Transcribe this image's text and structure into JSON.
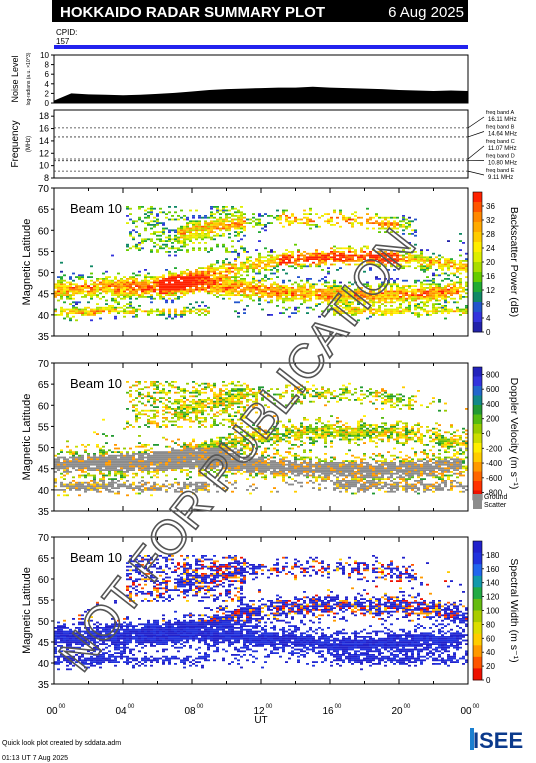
{
  "header": {
    "title": "HOKKAIDO RADAR SUMMARY PLOT",
    "date": "6 Aug 2025",
    "cpid_label": "CPID:",
    "cpid_value": "157"
  },
  "watermark": "NOT FOR PUBLICATION",
  "footer": {
    "line1": "Quick look plot created by sddata.adm",
    "line2": "01:13 UT  7 Aug 2025",
    "logo_text": "ISEE"
  },
  "colors": {
    "cpid_bar": "#2222ee",
    "ground_scatter": "#8c8c8c",
    "watermark": "#555555"
  },
  "chart_data": [
    {
      "type": "area",
      "name": "noise",
      "ylabel": "Noise Level",
      "ylabel_sub": "log-radians (a.u. ×10^3)",
      "ylim": [
        0,
        10
      ],
      "yticks": [
        "0",
        "2",
        "4",
        "6",
        "8",
        "10"
      ],
      "x": [
        0,
        1,
        2,
        3,
        4,
        5,
        6,
        7,
        8,
        9,
        10,
        11,
        12,
        13,
        14,
        15,
        16,
        17,
        18,
        19,
        20,
        21,
        22,
        23,
        24
      ],
      "values": [
        0.5,
        2.0,
        1.8,
        1.7,
        1.6,
        1.7,
        1.9,
        2.1,
        2.4,
        2.7,
        2.9,
        3.0,
        3.1,
        3.2,
        3.2,
        3.4,
        3.2,
        3.1,
        3.0,
        2.9,
        2.7,
        2.6,
        2.5,
        2.6,
        2.5
      ]
    },
    {
      "type": "line",
      "name": "frequency",
      "ylabel": "Frequency",
      "ylabel_sub": "(MHz)",
      "ylim": [
        8,
        19
      ],
      "yticks": [
        "8",
        "10",
        "12",
        "14",
        "16",
        "18"
      ],
      "bands": [
        {
          "label": "freq band A",
          "value_label": "16.11 MHz",
          "mhz": 16.11
        },
        {
          "label": "freq band B",
          "value_label": "14.64 MHz",
          "mhz": 14.64
        },
        {
          "label": "freq band C",
          "value_label": "11.07 MHz",
          "mhz": 11.07
        },
        {
          "label": "freq band D",
          "value_label": "10.80 MHz",
          "mhz": 10.8
        },
        {
          "label": "freq band E",
          "value_label": "9.11 MHz",
          "mhz": 9.11
        }
      ]
    },
    {
      "type": "heatmap",
      "name": "power",
      "beam_label": "Beam 10",
      "ylabel": "Magnetic Latitude",
      "ylim": [
        35,
        70
      ],
      "yticks": [
        "35",
        "40",
        "45",
        "50",
        "55",
        "60",
        "65",
        "70"
      ],
      "colorbar_title": "Backscatter Power (dB)",
      "colorbar_range": [
        0,
        40
      ],
      "colorbar_ticks": [
        "0",
        "4",
        "8",
        "12",
        "16",
        "20",
        "24",
        "28",
        "32",
        "36"
      ],
      "colors": [
        "#ff2200",
        "#ff5500",
        "#ff8800",
        "#ffaa00",
        "#ffcc00",
        "#ffee00",
        "#ddee00",
        "#aadd00",
        "#66cc00",
        "#22aa33",
        "#118866",
        "#2255cc",
        "#3333dd",
        "#2222aa"
      ]
    },
    {
      "type": "heatmap",
      "name": "velocity",
      "beam_label": "Beam 10",
      "ylabel": "Magnetic Latitude",
      "ylim": [
        35,
        70
      ],
      "yticks": [
        "35",
        "40",
        "45",
        "50",
        "55",
        "60",
        "65",
        "70"
      ],
      "colorbar_title": "Doppler Velocity (m s⁻¹)",
      "colorbar_range": [
        -900,
        900
      ],
      "colorbar_ticks": [
        "800",
        "600",
        "400",
        "200",
        "0",
        "-200",
        "-400",
        "-600",
        "-800"
      ],
      "legend_ground": "Ground",
      "legend_scatter": "Scatter",
      "colors": [
        "#2222bb",
        "#3333dd",
        "#2266cc",
        "#118888",
        "#229933",
        "#55bb11",
        "#99cc00",
        "#ccdd00",
        "#ffee00",
        "#ffcc00",
        "#ff9900",
        "#ff6600",
        "#ff3300",
        "#ee1100"
      ]
    },
    {
      "type": "heatmap",
      "name": "width",
      "beam_label": "Beam 10",
      "ylabel": "Magnetic Latitude",
      "ylim": [
        35,
        70
      ],
      "yticks": [
        "35",
        "40",
        "45",
        "50",
        "55",
        "60",
        "65",
        "70"
      ],
      "colorbar_title": "Spectral Width (m s⁻¹)",
      "colorbar_range": [
        0,
        200
      ],
      "colorbar_ticks": [
        "0",
        "20",
        "40",
        "60",
        "80",
        "100",
        "120",
        "140",
        "160",
        "180"
      ],
      "x_axis_label": "UT",
      "x_ticks": [
        "00",
        "04",
        "08",
        "12",
        "16",
        "20",
        "00"
      ],
      "x_ticks_sup": "00",
      "colors": [
        "#2222cc",
        "#2233dd",
        "#2266ee",
        "#1199aa",
        "#22aa44",
        "#66bb11",
        "#aacc00",
        "#dddd00",
        "#ffcc00",
        "#ff9900",
        "#ff5500",
        "#ee1100"
      ]
    }
  ]
}
